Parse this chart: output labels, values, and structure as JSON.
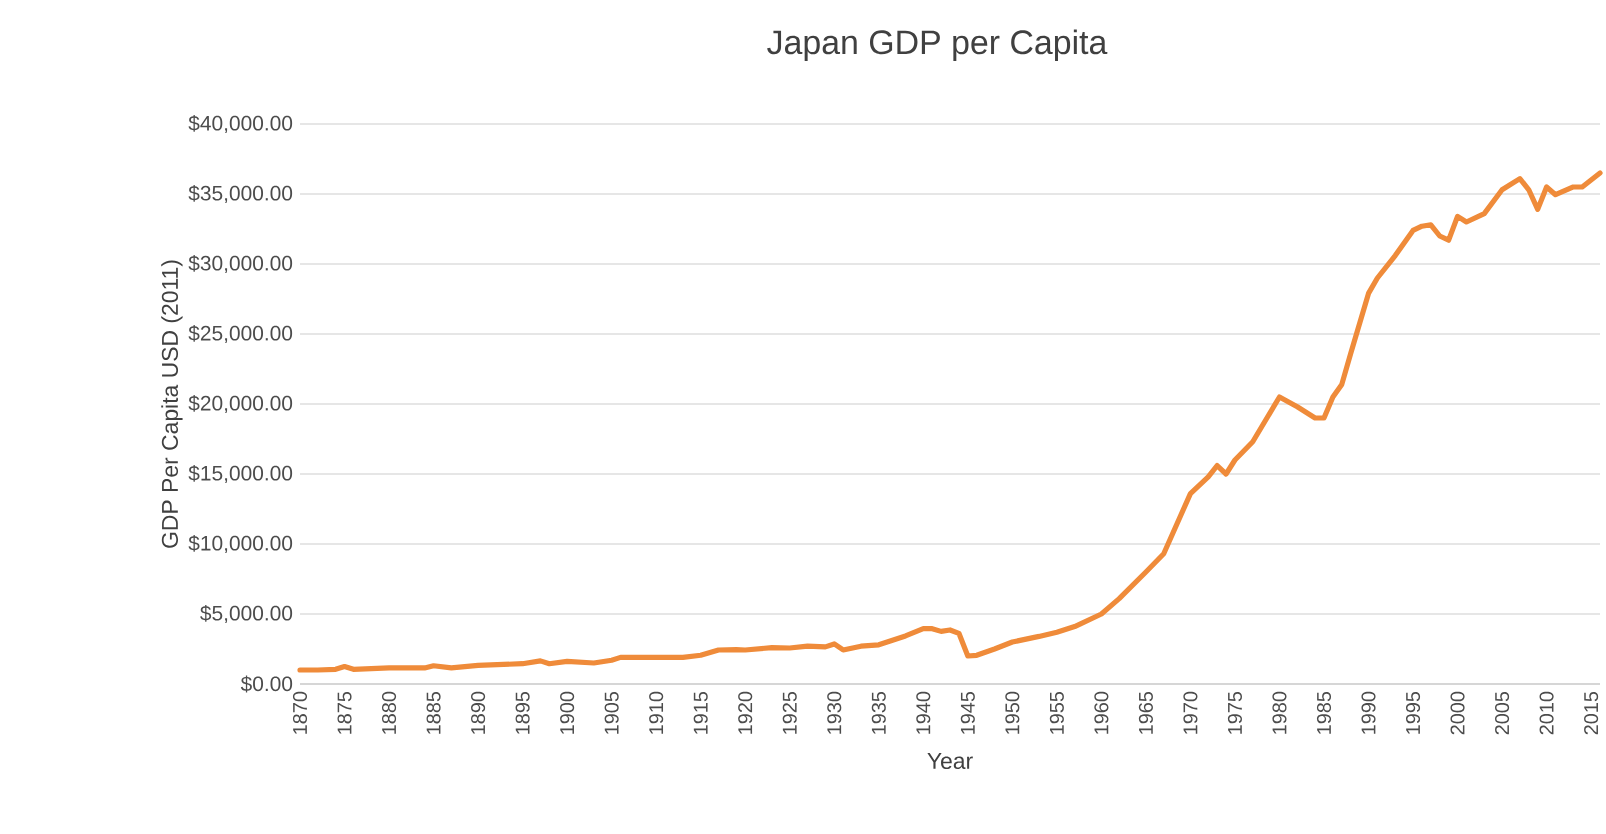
{
  "chart_data": {
    "type": "line",
    "title": "Japan GDP per Capita",
    "xlabel": "Year",
    "ylabel": "GDP Per Capita USD (2011)",
    "x": [
      1870,
      1872,
      1874,
      1875,
      1876,
      1880,
      1884,
      1885,
      1887,
      1890,
      1895,
      1897,
      1898,
      1900,
      1903,
      1905,
      1906,
      1910,
      1913,
      1915,
      1917,
      1919,
      1920,
      1923,
      1925,
      1927,
      1929,
      1930,
      1931,
      1933,
      1935,
      1938,
      1940,
      1941,
      1942,
      1943,
      1944,
      1945,
      1946,
      1948,
      1950,
      1953,
      1955,
      1957,
      1960,
      1962,
      1965,
      1967,
      1970,
      1972,
      1973,
      1974,
      1975,
      1977,
      1980,
      1982,
      1984,
      1985,
      1986,
      1987,
      1988,
      1990,
      1991,
      1993,
      1995,
      1996,
      1997,
      1998,
      1999,
      2000,
      2001,
      2003,
      2005,
      2007,
      2008,
      2009,
      2010,
      2011,
      2013,
      2014,
      2016
    ],
    "series": [
      {
        "color": "#ef8b3a",
        "values": [
          1000,
          1000,
          1050,
          1250,
          1050,
          1150,
          1150,
          1300,
          1150,
          1330,
          1450,
          1650,
          1450,
          1620,
          1500,
          1700,
          1900,
          1900,
          1900,
          2050,
          2430,
          2450,
          2430,
          2600,
          2570,
          2700,
          2650,
          2860,
          2430,
          2700,
          2800,
          3430,
          3950,
          3950,
          3760,
          3860,
          3620,
          2000,
          2050,
          2500,
          3000,
          3400,
          3700,
          4100,
          5000,
          6100,
          8000,
          9300,
          13600,
          14800,
          15600,
          15000,
          16000,
          17300,
          20500,
          19800,
          19000,
          19000,
          20500,
          21400,
          23600,
          27900,
          29000,
          30600,
          32400,
          32700,
          32800,
          32000,
          31700,
          33400,
          33000,
          33600,
          35300,
          36100,
          35300,
          33900,
          35500,
          34950,
          35500,
          35500,
          36500
        ]
      }
    ],
    "xlim": [
      1870,
      2016
    ],
    "xticks": [
      1870,
      1875,
      1880,
      1885,
      1890,
      1895,
      1900,
      1905,
      1910,
      1915,
      1920,
      1925,
      1930,
      1935,
      1940,
      1945,
      1950,
      1955,
      1960,
      1965,
      1970,
      1975,
      1980,
      1985,
      1990,
      1995,
      2000,
      2005,
      2010,
      2015
    ],
    "ylim": [
      0,
      40000
    ],
    "yticks": [
      {
        "value": 0,
        "label": "$0.00"
      },
      {
        "value": 5000,
        "label": "$5,000.00"
      },
      {
        "value": 10000,
        "label": "$10,000.00"
      },
      {
        "value": 15000,
        "label": "$15,000.00"
      },
      {
        "value": 20000,
        "label": "$20,000.00"
      },
      {
        "value": 25000,
        "label": "$25,000.00"
      },
      {
        "value": 30000,
        "label": "$30,000.00"
      },
      {
        "value": 35000,
        "label": "$35,000.00"
      },
      {
        "value": 40000,
        "label": "$40,000.00"
      }
    ],
    "grid": "y",
    "marker": "none",
    "line_style": "solid"
  }
}
